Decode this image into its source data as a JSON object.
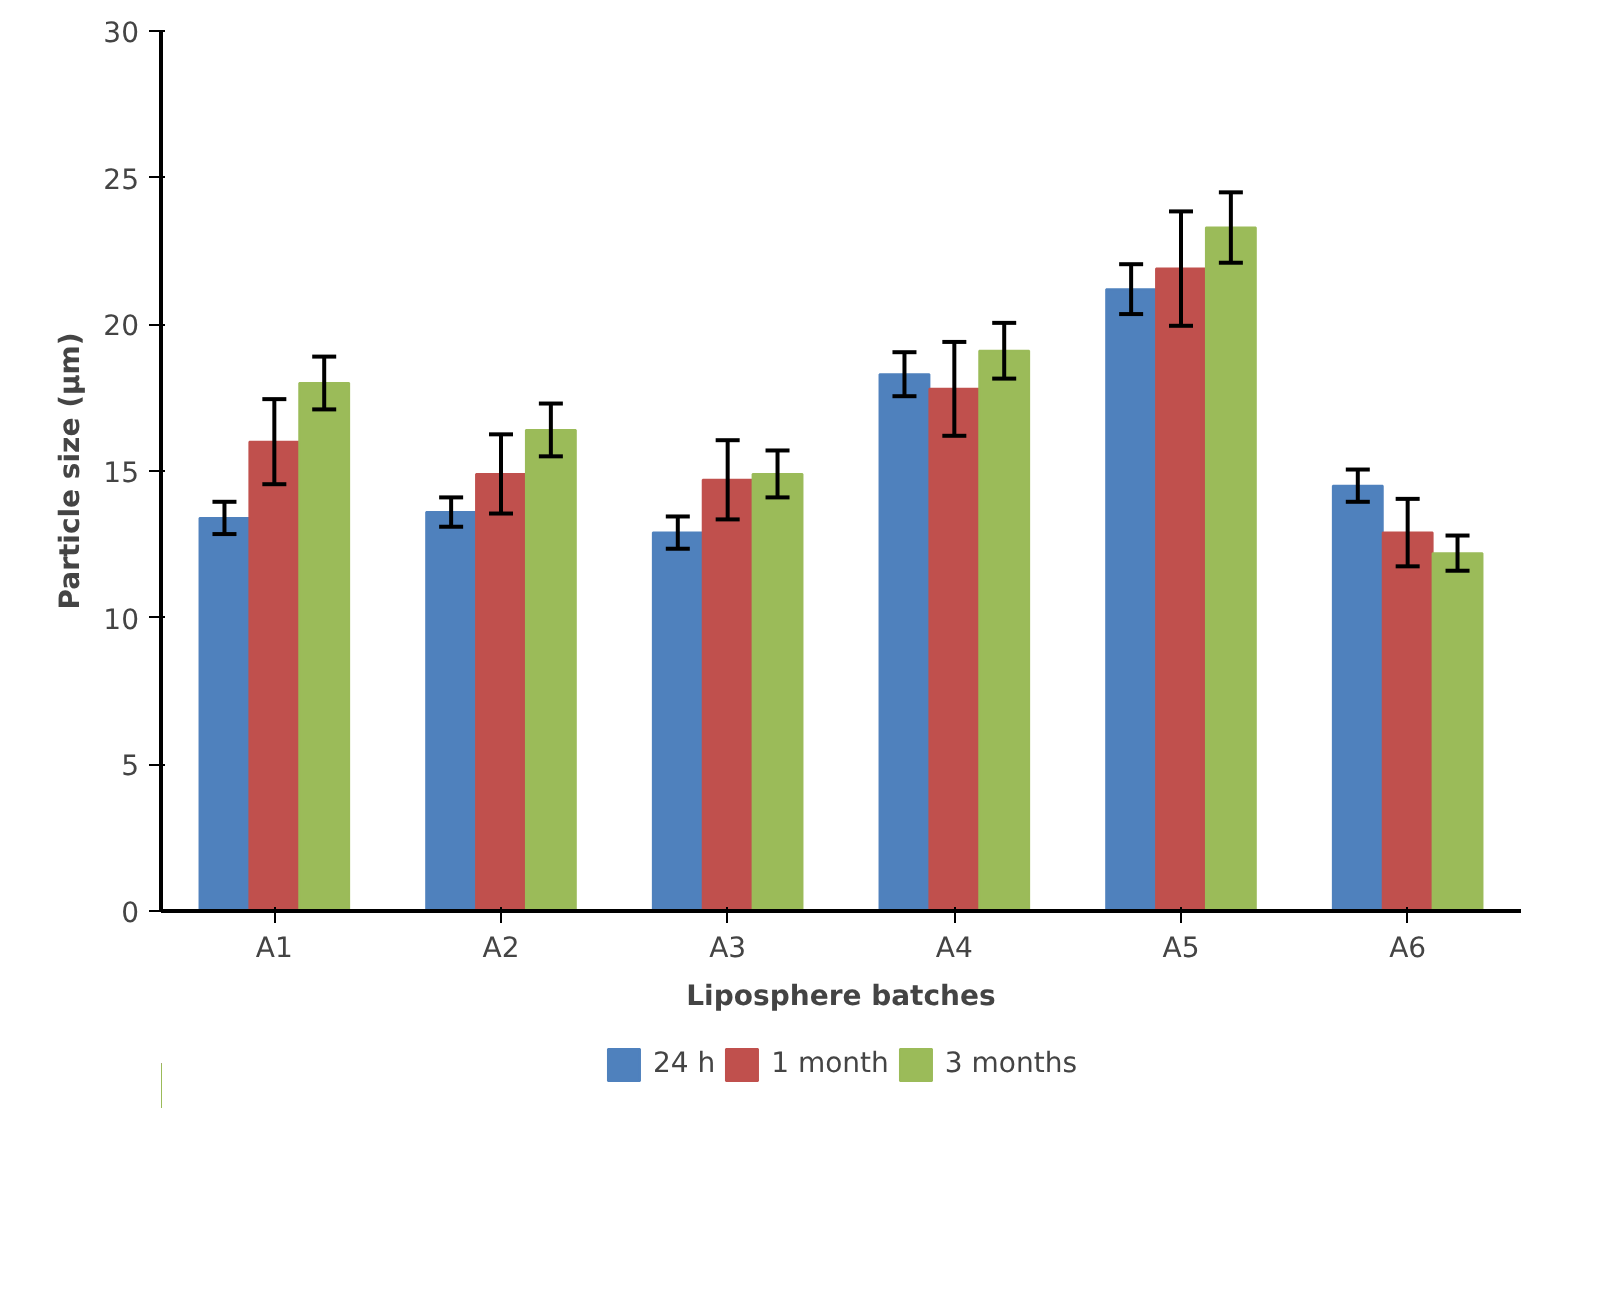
{
  "chart_data": {
    "type": "bar",
    "xlabel": "Liposphere batches",
    "ylabel": "Particle size (µm)",
    "categories": [
      "A1",
      "A2",
      "A3",
      "A4",
      "A5",
      "A6"
    ],
    "series": [
      {
        "name": "24 h",
        "color": "#4f81bd",
        "values": [
          13.4,
          13.6,
          12.9,
          18.3,
          21.2,
          14.5
        ],
        "errors": [
          0.55,
          0.5,
          0.55,
          0.75,
          0.85,
          0.55
        ]
      },
      {
        "name": "1 month",
        "color": "#c0504d",
        "values": [
          16.0,
          14.9,
          14.7,
          17.8,
          21.9,
          12.9
        ],
        "errors": [
          1.45,
          1.35,
          1.35,
          1.6,
          1.95,
          1.15
        ]
      },
      {
        "name": "3 months",
        "color": "#9bbb59",
        "values": [
          18.0,
          16.4,
          14.9,
          19.1,
          23.3,
          12.2
        ],
        "errors": [
          0.9,
          0.9,
          0.8,
          0.95,
          1.2,
          0.6
        ]
      }
    ],
    "ylim": [
      0,
      30
    ],
    "yticks": [
      0,
      5,
      10,
      15,
      20,
      25,
      30
    ],
    "grid": false,
    "legend": "bottom"
  }
}
